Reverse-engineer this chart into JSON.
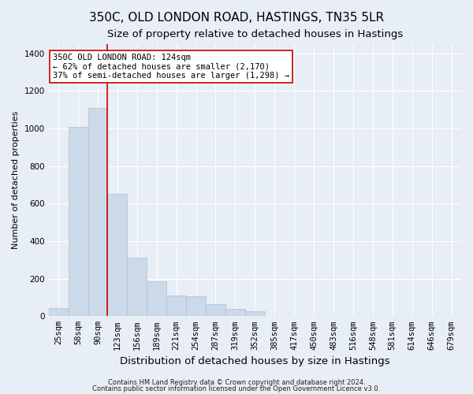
{
  "title1": "350C, OLD LONDON ROAD, HASTINGS, TN35 5LR",
  "title2": "Size of property relative to detached houses in Hastings",
  "xlabel": "Distribution of detached houses by size in Hastings",
  "ylabel": "Number of detached properties",
  "footnote1": "Contains HM Land Registry data © Crown copyright and database right 2024.",
  "footnote2": "Contains public sector information licensed under the Open Government Licence v3.0.",
  "bin_labels": [
    "25sqm",
    "58sqm",
    "90sqm",
    "123sqm",
    "156sqm",
    "189sqm",
    "221sqm",
    "254sqm",
    "287sqm",
    "319sqm",
    "352sqm",
    "385sqm",
    "417sqm",
    "450sqm",
    "483sqm",
    "516sqm",
    "548sqm",
    "581sqm",
    "614sqm",
    "646sqm",
    "679sqm"
  ],
  "bar_values": [
    45,
    1010,
    1110,
    650,
    310,
    185,
    110,
    105,
    65,
    40,
    25,
    0,
    0,
    0,
    0,
    0,
    0,
    0,
    0,
    0,
    0
  ],
  "bar_color": "#ccd9e8",
  "bar_edge_color": "#aabfd8",
  "red_line_color": "#cc0000",
  "annotation_line1": "350C OLD LONDON ROAD: 124sqm",
  "annotation_line2": "← 62% of detached houses are smaller (2,170)",
  "annotation_line3": "37% of semi-detached houses are larger (1,298) →",
  "annotation_box_facecolor": "#ffffff",
  "annotation_box_edgecolor": "#cc0000",
  "red_line_bin": 3,
  "ylim": [
    0,
    1450
  ],
  "yticks": [
    0,
    200,
    400,
    600,
    800,
    1000,
    1200,
    1400
  ],
  "background_color": "#e8eef5",
  "grid_color": "#ffffff",
  "title1_fontsize": 11,
  "title2_fontsize": 9.5,
  "xlabel_fontsize": 9.5,
  "ylabel_fontsize": 8,
  "tick_fontsize": 7.5,
  "footnote_fontsize": 6,
  "annotation_fontsize": 7.5
}
